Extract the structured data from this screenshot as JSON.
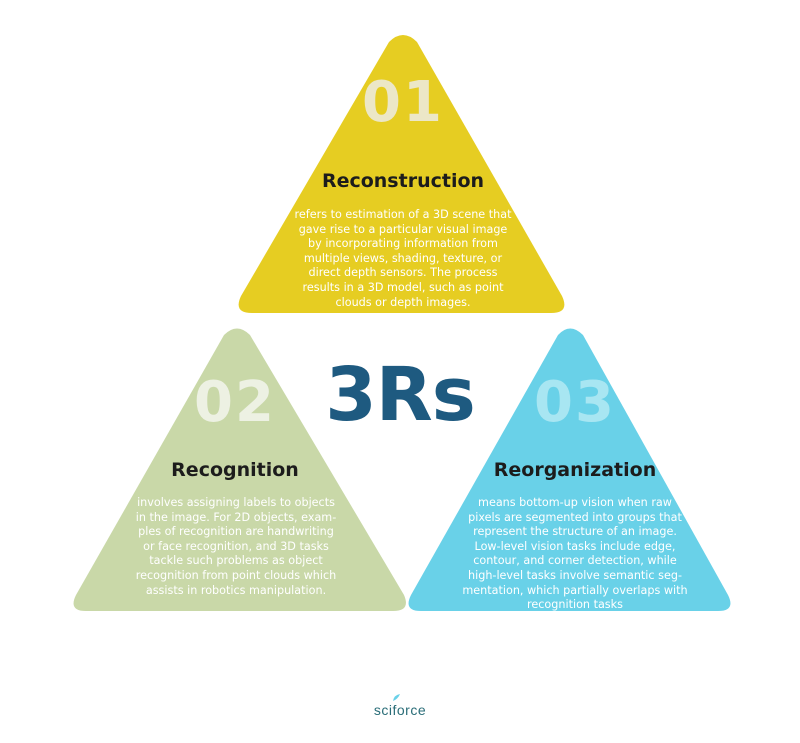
{
  "center_label": "3Rs",
  "colors": {
    "reconstruction": "#e6cd22",
    "recognition": "#c9d8a8",
    "reorganization": "#69d1e8",
    "center_text": "#1e5a80",
    "number_reconstruction": "#ece7c7",
    "number_recognition": "#edf1e3",
    "number_reorganization": "#a8e6f2",
    "logo": "#2a6d78"
  },
  "sections": [
    {
      "number": "01",
      "title": "Reconstruction",
      "description_lines": [
        "refers to estimation of a 3D scene that",
        "gave rise to a particular visual image",
        "by incorporating information from",
        "multiple views, shading, texture, or",
        "direct depth sensors. The process",
        "results in a 3D model, such as point",
        "clouds or depth images."
      ]
    },
    {
      "number": "02",
      "title": "Recognition",
      "description_lines": [
        "involves assigning labels to objects",
        "in the image. For 2D objects, exam-",
        "ples of recognition are handwriting",
        "or face recognition, and 3D tasks",
        "tackle such problems as object",
        "recognition from point clouds which",
        "assists in robotics manipulation."
      ]
    },
    {
      "number": "03",
      "title": "Reorganization",
      "description_lines": [
        "means bottom-up vision when raw",
        "pixels are segmented into groups that",
        "represent the structure of an image.",
        "Low-level vision tasks include edge,",
        "contour, and corner detection, while",
        "high-level tasks involve semantic seg-",
        "mentation, which partially overlaps with",
        "recognition tasks"
      ]
    }
  ],
  "logo_text": "sciforce"
}
